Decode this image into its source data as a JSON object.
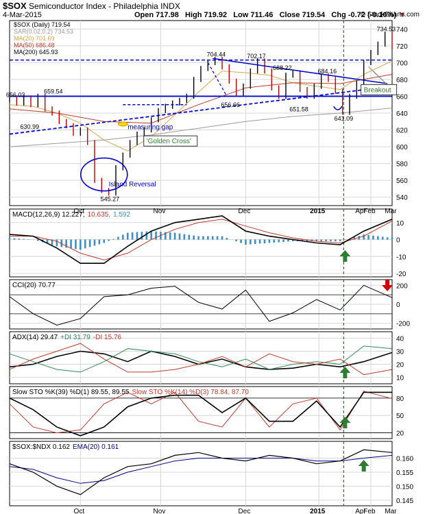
{
  "header": {
    "symbol": "$SOX",
    "name": "Semiconductor Index - Philadelphia",
    "exchange": "INDX",
    "date": "4-Mar-2015",
    "open": "Open 717.98",
    "high": "High 719.92",
    "low": "Low 711.46",
    "close": "Close 719.54",
    "chg": "Chg -0.72 (-0.10%)",
    "credit": "© StockCharts.com"
  },
  "colors": {
    "grid": "#d7d7d7",
    "price": "#000000",
    "ma20": "#d9a54a",
    "ma50": "#c0392b",
    "ma200": "#9a9a9a",
    "trend": "#0000cc",
    "macd_hist": "#3b8fc4",
    "cci_fill": "#4a7a4a",
    "adx": "#000000",
    "plus_di": "#2e8b57",
    "minus_di": "#c0392b",
    "sto_k": "#000000",
    "sto_d": "#c0392b",
    "ema": "#00008b",
    "arrow_up": "#2e7d32",
    "arrow_down": "#d00000",
    "vline": "#2e7d32"
  },
  "chart_data": [
    {
      "type": "line",
      "panel": "price",
      "legend": [
        {
          "name": "$SOX (Daily) 719.54",
          "color": "#000000"
        },
        {
          "name": "SAR(0.02,0.2) 734.53",
          "color": "#9a9a9a"
        },
        {
          "name": "MA(20) 701.69",
          "color": "#d9a54a"
        },
        {
          "name": "MA(50) 686.48",
          "color": "#c0392b"
        },
        {
          "name": "MA(200) 645.93",
          "color": "#000000"
        }
      ],
      "x_labels": [
        "Oct",
        "Nov",
        "Dec",
        "2015",
        "Feb",
        "Mar",
        "Apr"
      ],
      "ylim": [
        530,
        750
      ],
      "yticks": [
        540,
        560,
        580,
        600,
        620,
        640,
        660,
        680,
        700,
        720,
        740
      ],
      "series": [
        {
          "name": "$SOX",
          "x": [
            0,
            3,
            6,
            9,
            12,
            15,
            18,
            21,
            24,
            27,
            30,
            33,
            36,
            39,
            42,
            45,
            48,
            51,
            54,
            57,
            60,
            63,
            66,
            69,
            72,
            75,
            78,
            81,
            84,
            87,
            90,
            93,
            96,
            99,
            102,
            105,
            108,
            111,
            114,
            117,
            120,
            123,
            126,
            129,
            132,
            135,
            138,
            141,
            144,
            147,
            150,
            153,
            156,
            159,
            162
          ],
          "y": [
            656,
            652,
            658,
            650,
            660,
            645,
            640,
            630,
            625,
            616,
            620,
            605,
            560,
            548,
            545,
            575,
            590,
            605,
            615,
            620,
            632,
            643,
            648,
            652,
            655,
            660,
            680,
            693,
            700,
            704,
            695,
            678,
            663,
            672,
            690,
            702,
            690,
            670,
            660,
            685,
            688,
            668,
            660,
            672,
            684,
            680,
            666,
            641,
            660,
            676,
            700,
            712,
            722,
            734,
            719
          ]
        },
        {
          "name": "MA(20)",
          "x": [
            0,
            10,
            20,
            30,
            40,
            50,
            60,
            70,
            80,
            90,
            100,
            110,
            120,
            130,
            140,
            150,
            162
          ],
          "y": [
            650,
            648,
            640,
            628,
            608,
            595,
            612,
            638,
            665,
            690,
            688,
            685,
            676,
            672,
            668,
            686,
            702
          ]
        },
        {
          "name": "MA(50)",
          "x": [
            0,
            20,
            40,
            60,
            80,
            100,
            120,
            140,
            162
          ],
          "y": [
            645,
            640,
            630,
            628,
            650,
            670,
            676,
            675,
            686
          ]
        },
        {
          "name": "MA(200)",
          "x": [
            0,
            20,
            40,
            60,
            80,
            100,
            120,
            140,
            162
          ],
          "y": [
            600,
            604,
            608,
            614,
            622,
            630,
            636,
            640,
            646
          ]
        }
      ],
      "annotations": [
        {
          "text": "656.03",
          "x": 2,
          "y": 656
        },
        {
          "text": "659.54",
          "x": 18,
          "y": 660
        },
        {
          "text": "630.99",
          "x": 8,
          "y": 631
        },
        {
          "text": "704.44",
          "x": 87,
          "y": 704
        },
        {
          "text": "702.17",
          "x": 104,
          "y": 702
        },
        {
          "text": "688.22",
          "x": 115,
          "y": 688
        },
        {
          "text": "684.16",
          "x": 134,
          "y": 684
        },
        {
          "text": "656.66",
          "x": 93,
          "y": 657
        },
        {
          "text": "651.58",
          "x": 122,
          "y": 652
        },
        {
          "text": "641.09",
          "x": 141,
          "y": 641
        },
        {
          "text": "734.53",
          "x": 159,
          "y": 734
        },
        {
          "text": "545.27",
          "x": 42,
          "y": 545
        },
        {
          "text": "measuring gap"
        },
        {
          "text": "'Golden Cross'"
        },
        {
          "text": "Island Reversal"
        },
        {
          "text": "Breakout"
        }
      ]
    },
    {
      "type": "line",
      "panel": "macd",
      "legend": [
        {
          "name": "MACD(12,26,9) 12.227,",
          "color": "#000000"
        },
        {
          "name": "10.635,",
          "color": "#c0392b"
        },
        {
          "name": "1.592",
          "color": "#3b8fc4"
        }
      ],
      "ylim": [
        -22,
        18
      ],
      "yticks": [
        -20,
        -10,
        0,
        10
      ],
      "x": [
        0,
        10,
        20,
        30,
        40,
        50,
        60,
        70,
        80,
        90,
        100,
        110,
        120,
        130,
        140,
        150,
        162
      ],
      "series": [
        {
          "name": "MACD",
          "y": [
            3,
            2,
            -5,
            -14,
            -14,
            -4,
            5,
            10,
            12,
            14,
            5,
            2,
            0,
            -2,
            -3,
            5,
            12
          ]
        },
        {
          "name": "Signal",
          "y": [
            2,
            2,
            -1,
            -8,
            -12,
            -8,
            0,
            6,
            10,
            12,
            8,
            4,
            1,
            -1,
            -2,
            2,
            11
          ]
        },
        {
          "name": "Histogram",
          "y": [
            1,
            0,
            -4,
            -6,
            -2,
            4,
            5,
            4,
            2,
            2,
            -3,
            -2,
            -1,
            -1,
            -1,
            3,
            1
          ]
        }
      ]
    },
    {
      "type": "line",
      "panel": "cci",
      "legend": [
        {
          "name": "CCI(20) 70.77",
          "color": "#000000"
        }
      ],
      "ylim": [
        -260,
        260
      ],
      "yticks": [
        -200,
        0,
        200
      ],
      "x": [
        0,
        10,
        20,
        30,
        40,
        50,
        60,
        70,
        80,
        90,
        100,
        110,
        120,
        130,
        140,
        150,
        162
      ],
      "y": [
        80,
        -100,
        -220,
        -150,
        80,
        100,
        170,
        190,
        20,
        -50,
        150,
        -180,
        -90,
        50,
        -60,
        200,
        70
      ]
    },
    {
      "type": "line",
      "panel": "adx",
      "legend": [
        {
          "name": "ADX(14) 29.47",
          "color": "#000000"
        },
        {
          "name": "+DI 31.79",
          "color": "#2e8b57"
        },
        {
          "name": "-DI 15.76",
          "color": "#c0392b"
        }
      ],
      "ylim": [
        5,
        45
      ],
      "yticks": [
        10,
        20,
        30,
        40
      ],
      "x": [
        0,
        10,
        20,
        30,
        40,
        50,
        60,
        70,
        80,
        90,
        100,
        110,
        120,
        130,
        140,
        150,
        162
      ],
      "series": [
        {
          "name": "ADX",
          "y": [
            18,
            20,
            26,
            30,
            28,
            22,
            30,
            26,
            20,
            24,
            18,
            16,
            17,
            20,
            18,
            22,
            29
          ]
        },
        {
          "name": "+DI",
          "y": [
            28,
            22,
            16,
            14,
            22,
            32,
            30,
            28,
            22,
            18,
            24,
            16,
            20,
            22,
            20,
            34,
            32
          ]
        },
        {
          "name": "-DI",
          "y": [
            16,
            24,
            30,
            36,
            24,
            14,
            14,
            16,
            20,
            26,
            18,
            28,
            22,
            20,
            24,
            12,
            16
          ]
        }
      ]
    },
    {
      "type": "line",
      "panel": "stochastics",
      "legend": [
        {
          "name": "Slow STO %K(39) %D(1) 89.55, 89.55",
          "color": "#000000"
        },
        {
          "name": "Slow STO %K(14) %D(3) 78.84, 87.70",
          "color": "#c0392b"
        }
      ],
      "ylim": [
        10,
        100
      ],
      "yticks": [
        20,
        50,
        80
      ],
      "x": [
        0,
        10,
        20,
        30,
        40,
        50,
        60,
        70,
        80,
        90,
        100,
        110,
        120,
        130,
        140,
        150,
        162
      ],
      "series": [
        {
          "name": "%K(39)",
          "y": [
            80,
            60,
            30,
            15,
            30,
            65,
            80,
            85,
            85,
            55,
            80,
            40,
            40,
            75,
            30,
            90,
            90
          ]
        },
        {
          "name": "%K(14)",
          "y": [
            70,
            30,
            20,
            25,
            70,
            90,
            70,
            90,
            40,
            30,
            80,
            30,
            70,
            80,
            25,
            92,
            79
          ]
        }
      ]
    },
    {
      "type": "line",
      "panel": "ratio",
      "legend": [
        {
          "name": "$SOX:$NDX 0.162",
          "color": "#000000"
        },
        {
          "name": "EMA(20) 0.161",
          "color": "#00008b"
        }
      ],
      "ylim": [
        0.143,
        0.166
      ],
      "yticks": [
        0.145,
        0.15,
        0.155,
        0.16
      ],
      "x": [
        0,
        10,
        20,
        30,
        40,
        50,
        60,
        70,
        80,
        90,
        100,
        110,
        120,
        130,
        140,
        150,
        162
      ],
      "series": [
        {
          "name": "$SOX:$NDX",
          "y": [
            0.158,
            0.155,
            0.15,
            0.147,
            0.153,
            0.157,
            0.158,
            0.161,
            0.162,
            0.16,
            0.159,
            0.161,
            0.16,
            0.158,
            0.159,
            0.163,
            0.162
          ]
        },
        {
          "name": "EMA(20)",
          "y": [
            0.157,
            0.156,
            0.153,
            0.151,
            0.152,
            0.155,
            0.157,
            0.159,
            0.16,
            0.16,
            0.16,
            0.16,
            0.16,
            0.159,
            0.159,
            0.16,
            0.161
          ]
        }
      ]
    }
  ]
}
